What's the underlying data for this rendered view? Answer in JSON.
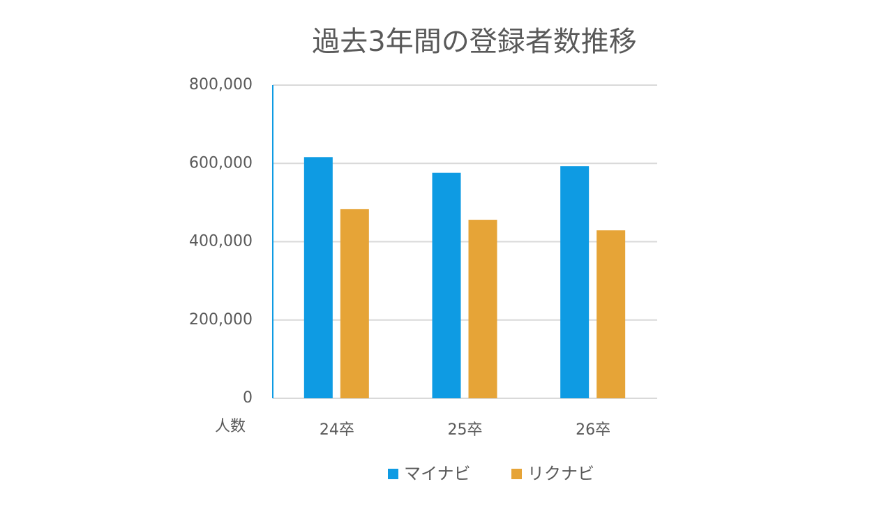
{
  "chart_data": {
    "type": "bar",
    "title": "過去3年間の登録者数推移",
    "y_label": "人数",
    "categories": [
      "24卒",
      "25卒",
      "26卒"
    ],
    "series": [
      {
        "name": "マイナビ",
        "color": "#0e9be3",
        "values": [
          616000,
          576000,
          593000
        ]
      },
      {
        "name": "リクナビ",
        "color": "#e6a437",
        "values": [
          483000,
          456000,
          429000
        ]
      }
    ],
    "ylim": [
      0,
      800000
    ],
    "yticks": [
      0,
      {
        "value": 200000,
        "label": "200,000"
      },
      {
        "value": 400000,
        "label": "400,000"
      },
      {
        "value": 600000,
        "label": "600,000"
      },
      {
        "value": 800000,
        "label": "800,000"
      }
    ],
    "grid": true,
    "legend": "bottom"
  }
}
